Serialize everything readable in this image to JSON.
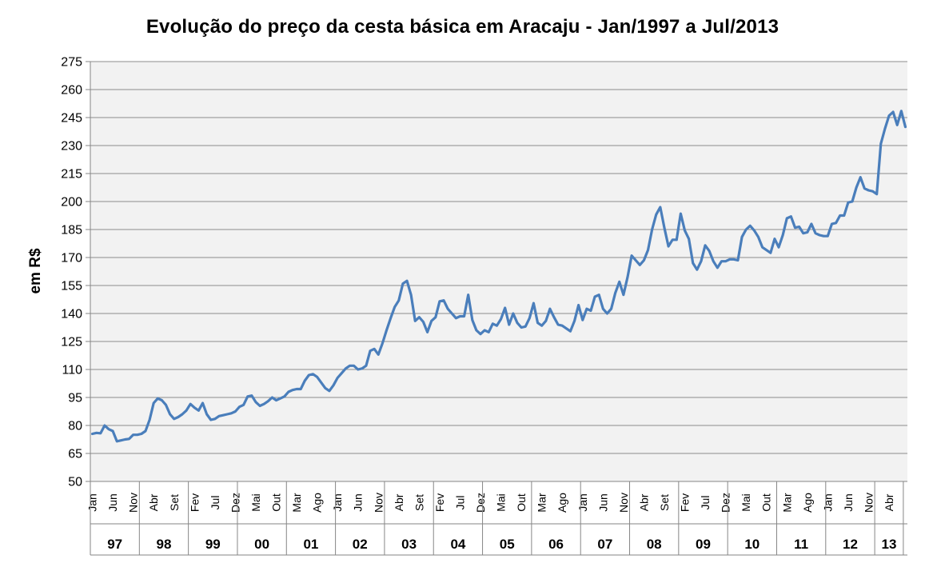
{
  "chart_data": {
    "type": "line",
    "title": "Evolução do preço da cesta básica em Aracaju - Jan/1997 a Jul/2013",
    "xlabel": "",
    "ylabel": "em R$",
    "ylim": [
      50,
      275
    ],
    "yticks": [
      "50",
      "65",
      "80",
      "95",
      "110",
      "125",
      "140",
      "155",
      "170",
      "185",
      "200",
      "215",
      "230",
      "245",
      "260",
      "275"
    ],
    "grid": "horizontal",
    "legend": "none",
    "series_color": "#4a7ebb",
    "x_start": "Jan/1997",
    "month_tick_labels": [
      "Jan",
      "Jun",
      "Nov",
      "Abr",
      "Set",
      "Fev",
      "Jul",
      "Dez",
      "Mai",
      "Out",
      "Mar",
      "Ago",
      "Jan",
      "Jun",
      "Nov",
      "Abr",
      "Set",
      "Fev",
      "Jul",
      "Dez",
      "Mai",
      "Out",
      "Mar",
      "Ago",
      "Jan",
      "Jun",
      "Nov",
      "Abr",
      "Set",
      "Fev",
      "Jul",
      "Dez",
      "Mai",
      "Out",
      "Mar",
      "Ago",
      "Jan",
      "Jun",
      "Nov",
      "Abr"
    ],
    "years": [
      {
        "label": "97",
        "months": 12
      },
      {
        "label": "98",
        "months": 12
      },
      {
        "label": "99",
        "months": 12
      },
      {
        "label": "00",
        "months": 12
      },
      {
        "label": "01",
        "months": 12
      },
      {
        "label": "02",
        "months": 12
      },
      {
        "label": "03",
        "months": 12
      },
      {
        "label": "04",
        "months": 12
      },
      {
        "label": "05",
        "months": 12
      },
      {
        "label": "06",
        "months": 12
      },
      {
        "label": "07",
        "months": 12
      },
      {
        "label": "08",
        "months": 12
      },
      {
        "label": "09",
        "months": 12
      },
      {
        "label": "10",
        "months": 12
      },
      {
        "label": "11",
        "months": 12
      },
      {
        "label": "12",
        "months": 12
      },
      {
        "label": "13",
        "months": 7
      }
    ],
    "series": [
      {
        "name": "",
        "values": [
          75.5,
          76,
          75.8,
          80,
          78,
          77,
          71.5,
          72,
          72.5,
          72.8,
          75,
          75,
          75.5,
          77,
          83,
          92,
          94.5,
          93.5,
          91,
          86,
          83.5,
          84.5,
          86,
          88,
          91.5,
          89.5,
          88,
          92,
          86,
          83,
          83.5,
          85,
          85.5,
          86,
          86.5,
          87.5,
          90,
          91,
          95.5,
          96,
          92.5,
          90.5,
          91.5,
          93,
          95,
          93.5,
          94.5,
          95.5,
          98,
          99,
          99.5,
          99.5,
          104,
          107,
          107.5,
          106,
          103,
          100,
          98.5,
          101.5,
          105.5,
          108,
          110.5,
          112,
          112,
          110,
          110.5,
          112,
          120,
          121,
          118,
          124,
          131,
          137.5,
          143.5,
          147,
          156,
          157.5,
          150,
          136,
          138,
          135.5,
          130,
          136,
          138,
          146.5,
          147,
          142.5,
          140,
          137.5,
          138.5,
          138.5,
          150,
          136.5,
          131,
          129,
          131,
          130,
          134.5,
          133.5,
          137,
          143,
          134,
          140,
          135,
          132.5,
          133,
          137.5,
          145.5,
          135,
          133.5,
          136,
          142.5,
          138,
          134,
          133.5,
          132,
          130.5,
          136,
          144.5,
          136.5,
          142.5,
          141.5,
          149,
          150,
          142.5,
          140,
          142.5,
          151,
          157,
          150,
          159.5,
          171,
          168.5,
          166,
          168.5,
          174,
          185,
          193,
          197,
          186,
          176,
          179.5,
          179.5,
          193.5,
          184.5,
          180,
          167,
          163.5,
          168,
          176.5,
          173.5,
          168,
          164.5,
          168,
          168,
          169,
          169,
          168.5,
          181,
          185,
          187,
          184.5,
          181,
          175.5,
          174,
          172.5,
          180,
          175.5,
          182,
          191,
          192,
          186,
          186.5,
          183,
          183.5,
          188,
          183,
          182,
          181.5,
          181.5,
          188,
          188.5,
          192.5,
          192.5,
          199.5,
          200,
          207.5,
          213,
          207,
          206,
          205.5,
          204,
          231,
          239,
          246,
          248,
          241,
          248.5,
          240
        ]
      }
    ]
  }
}
